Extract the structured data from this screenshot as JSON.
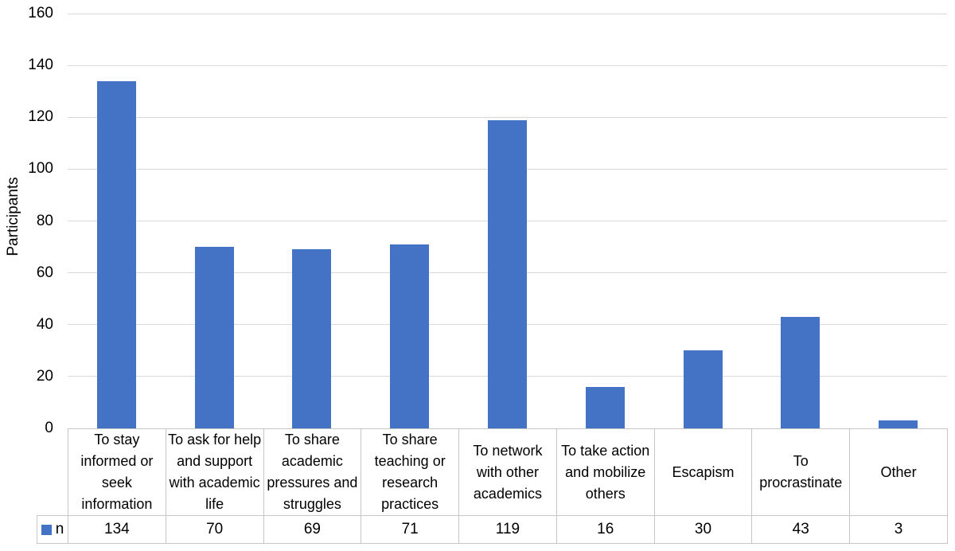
{
  "chart_data": {
    "type": "bar",
    "title": "",
    "xlabel": "",
    "ylabel": "Participants",
    "ylim": [
      0,
      160
    ],
    "yticks": [
      0,
      20,
      40,
      60,
      80,
      100,
      120,
      140,
      160
    ],
    "grid": true,
    "legend_position": "table-left",
    "data_table_shown": true,
    "categories": [
      "To stay informed or seek information",
      "To ask for help and support with academic life",
      "To share academic pressures and struggles",
      "To share teaching or research practices",
      "To network with other academics",
      "To take action and mobilize others",
      "Escapism",
      "To procrastinate",
      "Other"
    ],
    "series": [
      {
        "name": "n",
        "values": [
          134,
          70,
          69,
          71,
          119,
          16,
          30,
          43,
          3
        ],
        "color": "#4472C4"
      }
    ]
  },
  "colors": {
    "bar": "#4472C4",
    "gridline": "#d9d9d9",
    "table_border": "#c6c6c6",
    "text": "#000000"
  }
}
